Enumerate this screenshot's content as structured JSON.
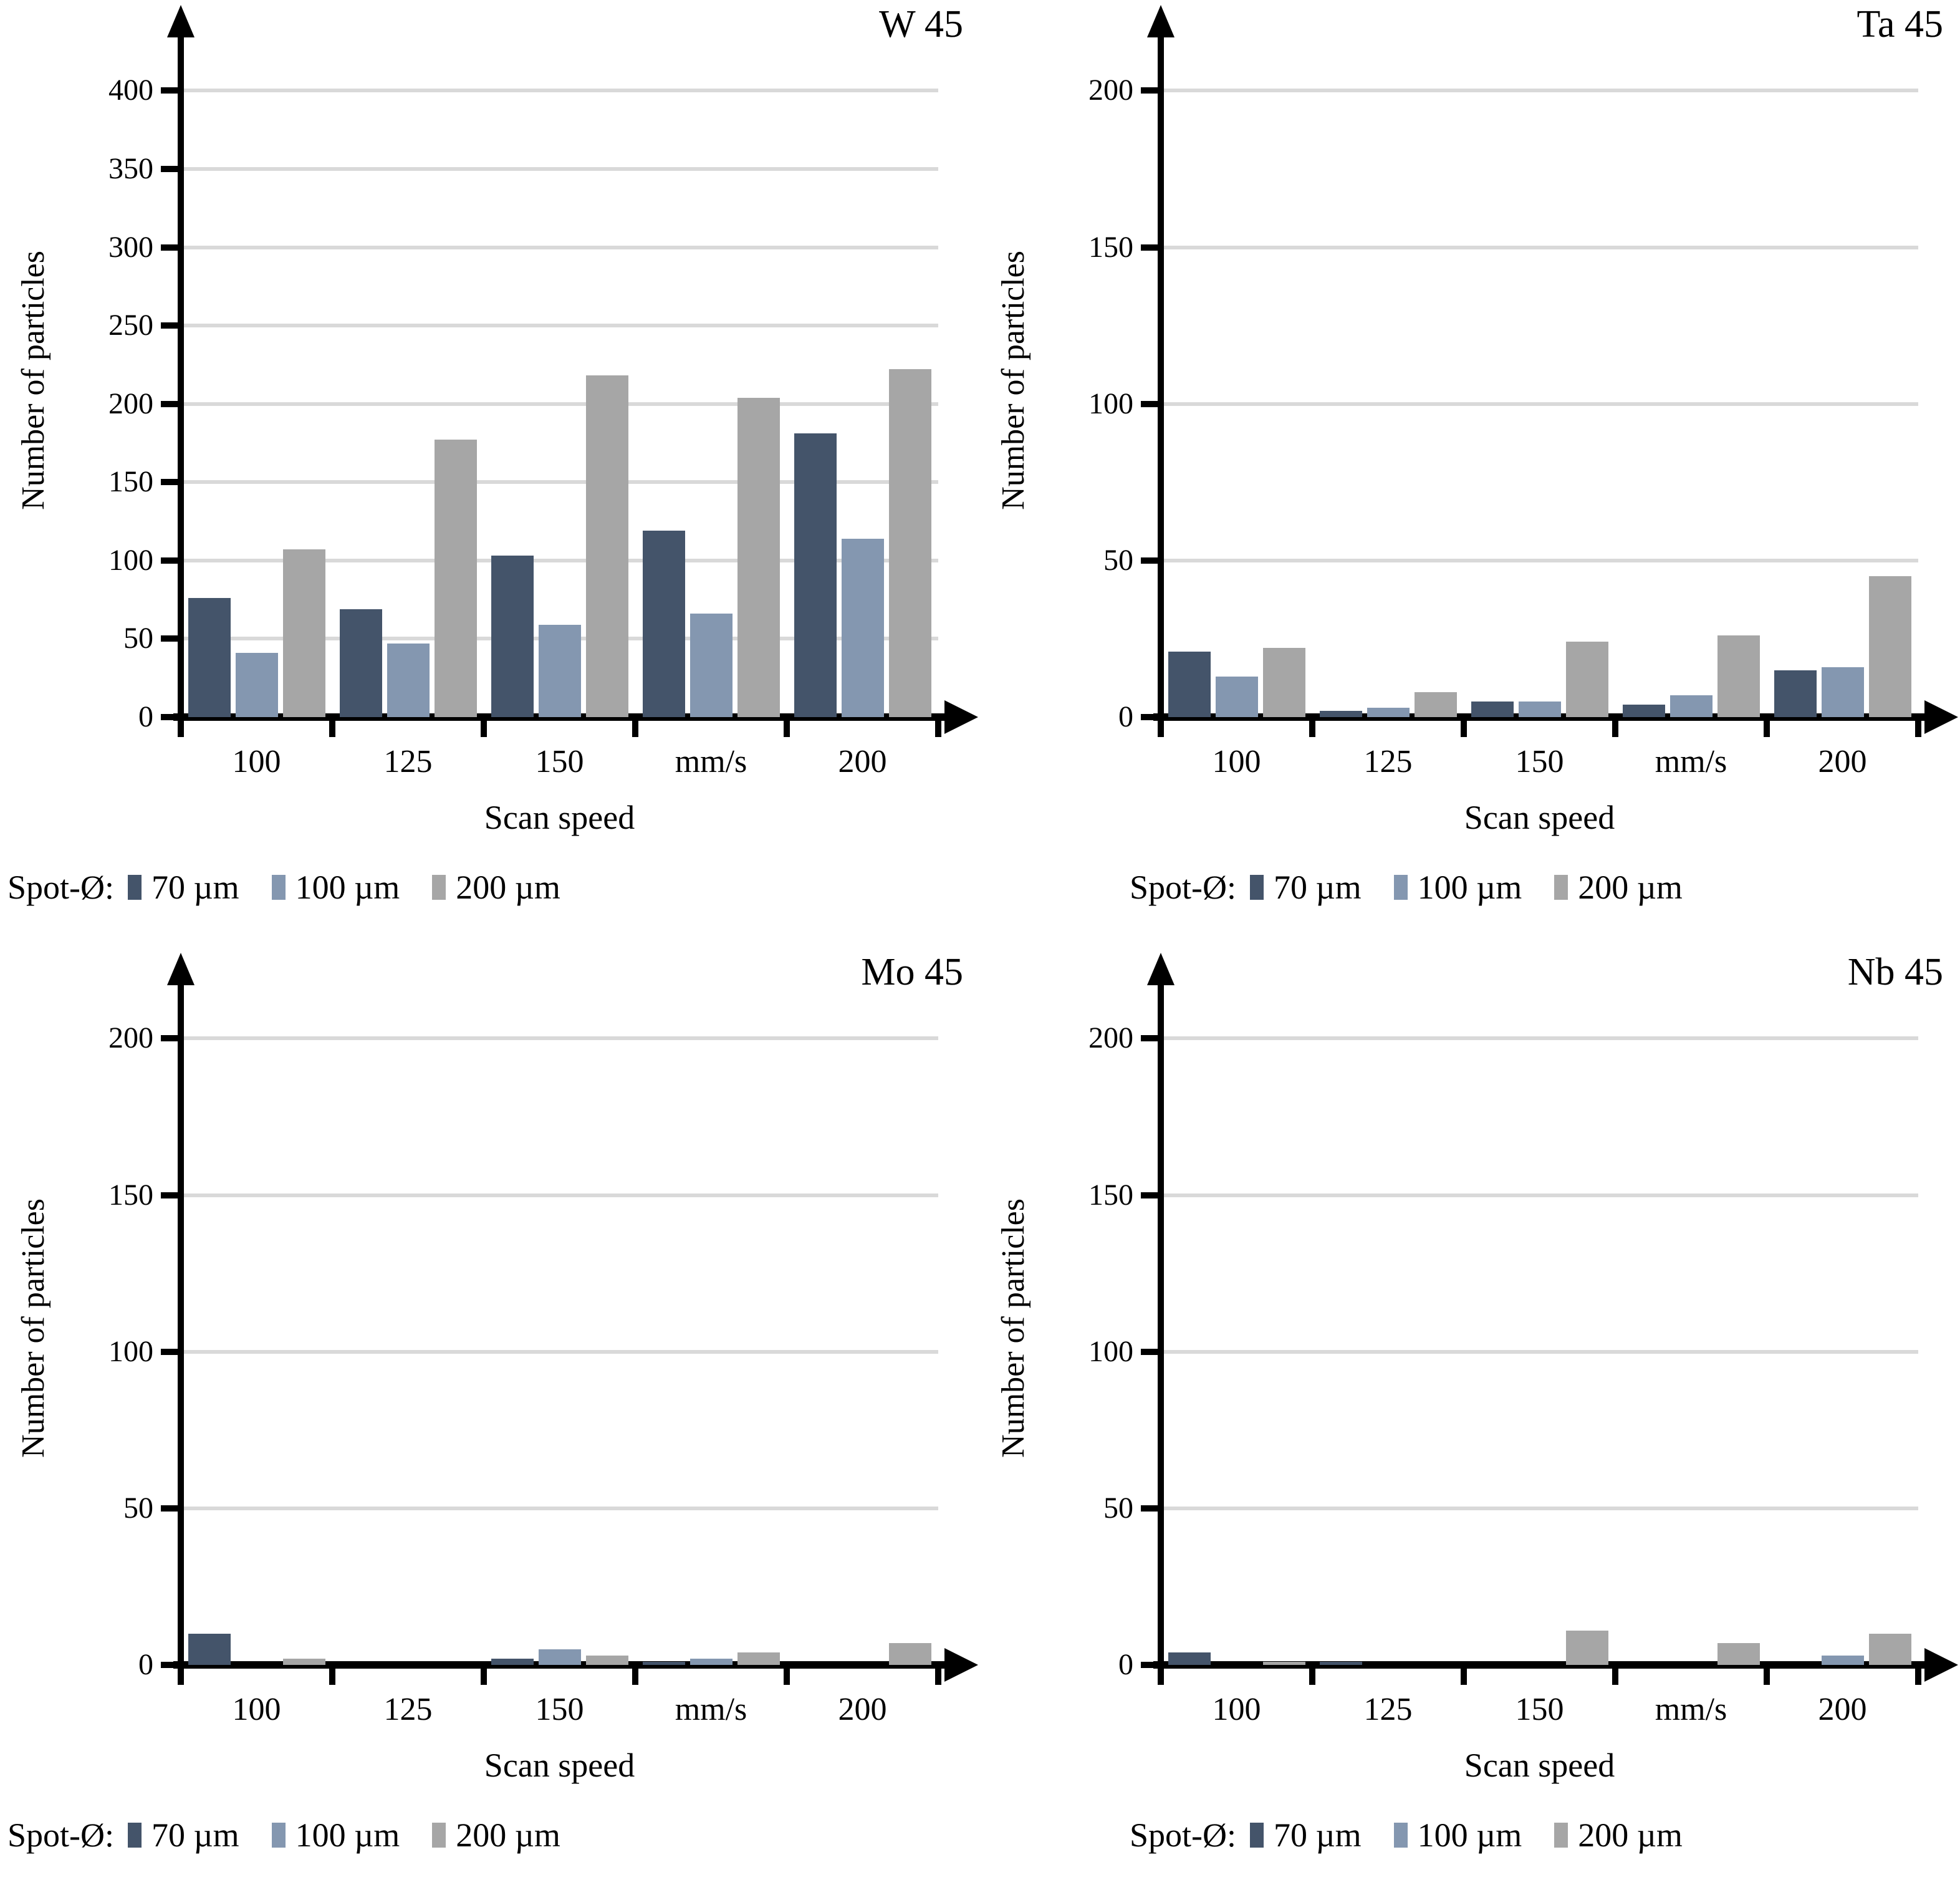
{
  "colors": {
    "series_70": "#44546A",
    "series_100": "#8497B0",
    "series_200": "#A6A6A6",
    "gridline": "#D9D9D9",
    "axis": "#000000"
  },
  "legend": {
    "prefix": "Spot-Ø:",
    "items": [
      {
        "label": "70 µm",
        "color_key": "series_70"
      },
      {
        "label": "100 µm",
        "color_key": "series_100"
      },
      {
        "label": "200 µm",
        "color_key": "series_200"
      }
    ]
  },
  "chart_data": [
    {
      "type": "bar",
      "title": "W 45",
      "ylabel": "Number of particles",
      "xlabel": "Scan speed",
      "categories": [
        "100",
        "125",
        "150",
        "mm/s",
        "200"
      ],
      "ylim": [
        0,
        400
      ],
      "ytick_step": 50,
      "grid": true,
      "legend_position": "bottom-left",
      "series": [
        {
          "name": "70 µm",
          "values": [
            76,
            69,
            103,
            119,
            181
          ]
        },
        {
          "name": "100 µm",
          "values": [
            41,
            47,
            59,
            66,
            114
          ]
        },
        {
          "name": "200 µm",
          "values": [
            107,
            177,
            218,
            204,
            222
          ]
        }
      ]
    },
    {
      "type": "bar",
      "title": "Ta 45",
      "ylabel": "Number of particles",
      "xlabel": "Scan speed",
      "categories": [
        "100",
        "125",
        "150",
        "mm/s",
        "200"
      ],
      "ylim": [
        0,
        200
      ],
      "ytick_step": 50,
      "grid": true,
      "legend_position": "bottom-left",
      "series": [
        {
          "name": "70 µm",
          "values": [
            21,
            2,
            5,
            4,
            15
          ]
        },
        {
          "name": "100 µm",
          "values": [
            13,
            3,
            5,
            7,
            16
          ]
        },
        {
          "name": "200 µm",
          "values": [
            22,
            8,
            24,
            26,
            45
          ]
        }
      ]
    },
    {
      "type": "bar",
      "title": "Mo 45",
      "ylabel": "Number of particles",
      "xlabel": "Scan speed",
      "categories": [
        "100",
        "125",
        "150",
        "mm/s",
        "200"
      ],
      "ylim": [
        0,
        200
      ],
      "ytick_step": 50,
      "grid": true,
      "legend_position": "bottom-left",
      "series": [
        {
          "name": "70 µm",
          "values": [
            10,
            0,
            2,
            1,
            0
          ]
        },
        {
          "name": "100 µm",
          "values": [
            0,
            0,
            5,
            2,
            0
          ]
        },
        {
          "name": "200 µm",
          "values": [
            2,
            0,
            3,
            4,
            7
          ]
        }
      ]
    },
    {
      "type": "bar",
      "title": "Nb 45",
      "ylabel": "Number of particles",
      "xlabel": "Scan speed",
      "categories": [
        "100",
        "125",
        "150",
        "mm/s",
        "200"
      ],
      "ylim": [
        0,
        200
      ],
      "ytick_step": 50,
      "grid": true,
      "legend_position": "bottom-left",
      "series": [
        {
          "name": "70 µm",
          "values": [
            4,
            1,
            0,
            0,
            0
          ]
        },
        {
          "name": "100 µm",
          "values": [
            0,
            0,
            0,
            0,
            3
          ]
        },
        {
          "name": "200 µm",
          "values": [
            1,
            0,
            11,
            7,
            10
          ]
        }
      ]
    }
  ]
}
